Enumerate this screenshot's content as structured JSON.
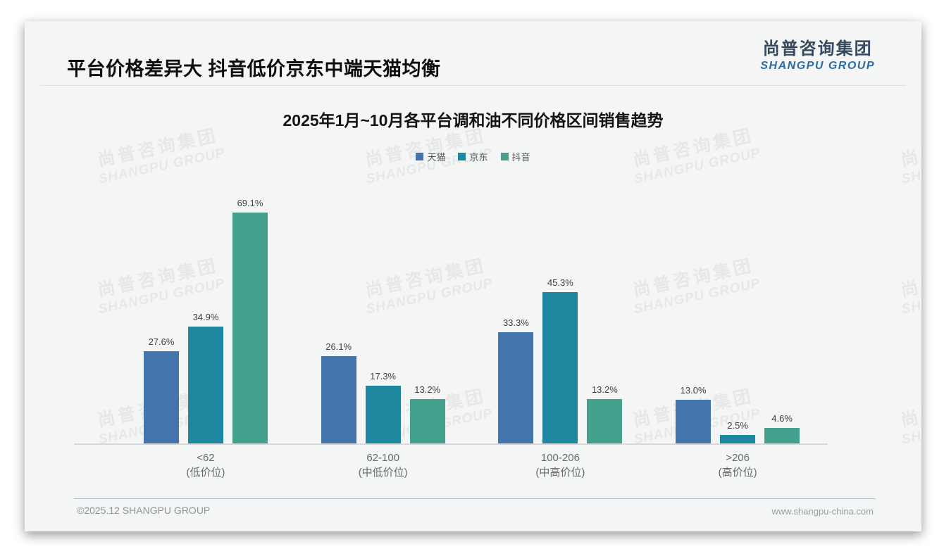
{
  "slide": {
    "title": "平台价格差异大 抖音低价京东中端天猫均衡"
  },
  "logo": {
    "cn": "尚普咨询集团",
    "en": "SHANGPU GROUP"
  },
  "watermark": {
    "line1": "尚普咨询集团",
    "line2": "SHANGPU GROUP"
  },
  "footer": {
    "copyright": "©2025.12 SHANGPU GROUP",
    "website": "www.shangpu-china.com"
  },
  "chart_data": {
    "type": "bar",
    "title": "2025年1月~10月各平台调和油不同价格区间销售趋势",
    "categories": [
      {
        "range": "<62",
        "label": "(低价位)"
      },
      {
        "range": "62-100",
        "label": "(中低价位)"
      },
      {
        "range": "100-206",
        "label": "(中高价位)"
      },
      {
        "range": ">206",
        "label": "(高价位)"
      }
    ],
    "series": [
      {
        "name": "天猫",
        "color": "#4375AC",
        "values": [
          27.6,
          26.1,
          33.3,
          13.0
        ]
      },
      {
        "name": "京东",
        "color": "#1E87A0",
        "values": [
          34.9,
          17.3,
          45.3,
          2.5
        ]
      },
      {
        "name": "抖音",
        "color": "#43A28E",
        "values": [
          69.1,
          13.2,
          13.2,
          4.6
        ]
      }
    ],
    "value_suffix": "%",
    "ylim": [
      0,
      75
    ],
    "legend_position": "top",
    "grid": false
  }
}
